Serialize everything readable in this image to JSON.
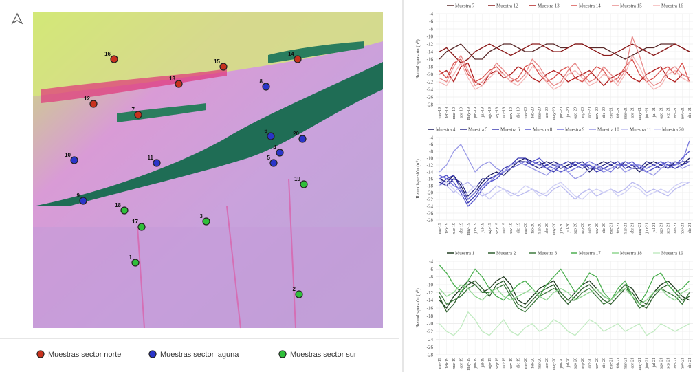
{
  "map": {
    "points": [
      {
        "label": "1",
        "color": "#2fbf3a"
      },
      {
        "label": "2",
        "color": "#2fbf3a"
      },
      {
        "label": "3",
        "color": "#2fbf3a"
      },
      {
        "label": "4",
        "color": "#2a35c9"
      },
      {
        "label": "5",
        "color": "#2a35c9"
      },
      {
        "label": "6",
        "color": "#2a35c9"
      },
      {
        "label": "7",
        "color": "#c8321e"
      },
      {
        "label": "8",
        "color": "#2a35c9"
      },
      {
        "label": "9",
        "color": "#2a35c9"
      },
      {
        "label": "10",
        "color": "#2a35c9"
      },
      {
        "label": "11",
        "color": "#2a35c9"
      },
      {
        "label": "12",
        "color": "#c8321e"
      },
      {
        "label": "13",
        "color": "#c8321e"
      },
      {
        "label": "14",
        "color": "#c8321e"
      },
      {
        "label": "15",
        "color": "#c8321e"
      },
      {
        "label": "16",
        "color": "#c8321e"
      },
      {
        "label": "17",
        "color": "#2fbf3a"
      },
      {
        "label": "18",
        "color": "#2fbf3a"
      },
      {
        "label": "19",
        "color": "#2fbf3a"
      },
      {
        "label": "20",
        "color": "#2a35c9"
      }
    ],
    "legend": [
      {
        "name": "Muestras sector norte",
        "color": "#c8321e"
      },
      {
        "name": "Muestras sector laguna",
        "color": "#2a35c9"
      },
      {
        "name": "Muestras sector sur",
        "color": "#2fbf3a"
      }
    ]
  },
  "chart_data": [
    {
      "type": "line",
      "y_label": "Retrodispersión (σ⁰)",
      "x": [
        "ene-19",
        "feb-19",
        "mar-19",
        "abr-19",
        "may-19",
        "jun-19",
        "jul-19",
        "ago-19",
        "sep-19",
        "oct-19",
        "nov-19",
        "dic-19",
        "ene-20",
        "feb-20",
        "mar-20",
        "abr-20",
        "may-20",
        "jun-20",
        "jul-20",
        "ago-20",
        "sep-20",
        "oct-20",
        "nov-20",
        "dic-20",
        "ene-21",
        "feb-21",
        "mar-21",
        "abr-21",
        "may-21",
        "jun-21",
        "jul-21",
        "ago-21",
        "sep-21",
        "oct-21",
        "nov-21",
        "dic-21"
      ],
      "ylim": [
        -28,
        -4
      ],
      "yticks": [
        -28,
        -26,
        -24,
        -22,
        -20,
        -18,
        -16,
        -14,
        -12,
        -10,
        -8,
        -6,
        -4
      ],
      "grid": true,
      "series": [
        {
          "name": "Muestra 7",
          "color": "#5a2a2a",
          "values": [
            -16,
            -14,
            -13,
            -12,
            -14,
            -16,
            -16,
            -14,
            -13,
            -12,
            -12,
            -13,
            -14,
            -14,
            -13,
            -12,
            -12,
            -13,
            -13,
            -12,
            -12,
            -13,
            -13,
            -13,
            -14,
            -15,
            -16,
            -15,
            -14,
            -13,
            -13,
            -12,
            -12,
            -12,
            -13,
            -14
          ]
        },
        {
          "name": "Muestra 12",
          "color": "#8b1a1a",
          "values": [
            -14,
            -13,
            -15,
            -17,
            -16,
            -14,
            -13,
            -12,
            -13,
            -14,
            -15,
            -14,
            -13,
            -12,
            -12,
            -13,
            -14,
            -14,
            -13,
            -12,
            -12,
            -13,
            -14,
            -15,
            -15,
            -14,
            -13,
            -12,
            -13,
            -14,
            -15,
            -14,
            -13,
            -12,
            -13,
            -14
          ]
        },
        {
          "name": "Muestra 13",
          "color": "#b22222",
          "values": [
            -20,
            -19,
            -22,
            -18,
            -17,
            -22,
            -23,
            -20,
            -19,
            -21,
            -20,
            -18,
            -19,
            -21,
            -22,
            -20,
            -19,
            -20,
            -22,
            -21,
            -20,
            -19,
            -21,
            -23,
            -21,
            -20,
            -19,
            -21,
            -22,
            -20,
            -19,
            -18,
            -21,
            -22,
            -20,
            -21
          ]
        },
        {
          "name": "Muestra 14",
          "color": "#d9534f",
          "values": [
            -19,
            -21,
            -17,
            -16,
            -20,
            -22,
            -21,
            -19,
            -18,
            -20,
            -22,
            -21,
            -18,
            -17,
            -20,
            -22,
            -21,
            -19,
            -18,
            -21,
            -22,
            -20,
            -18,
            -19,
            -22,
            -21,
            -18,
            -16,
            -20,
            -22,
            -21,
            -19,
            -18,
            -20,
            -17,
            -22
          ]
        },
        {
          "name": "Muestra 15",
          "color": "#e88a8a",
          "values": [
            -21,
            -22,
            -18,
            -15,
            -19,
            -23,
            -22,
            -20,
            -17,
            -19,
            -21,
            -22,
            -20,
            -16,
            -18,
            -21,
            -23,
            -22,
            -19,
            -17,
            -20,
            -22,
            -21,
            -18,
            -20,
            -22,
            -19,
            -10,
            -15,
            -21,
            -23,
            -22,
            -19,
            -18,
            -20,
            -21
          ]
        },
        {
          "name": "Muestra 16",
          "color": "#f4b6b6",
          "values": [
            -22,
            -23,
            -20,
            -17,
            -21,
            -24,
            -23,
            -21,
            -19,
            -20,
            -22,
            -23,
            -21,
            -18,
            -19,
            -22,
            -24,
            -23,
            -20,
            -19,
            -21,
            -23,
            -22,
            -20,
            -21,
            -23,
            -20,
            -15,
            -18,
            -22,
            -24,
            -23,
            -20,
            -19,
            -21,
            -22
          ]
        }
      ]
    },
    {
      "type": "line",
      "y_label": "Retrodispersión (σ⁰)",
      "x": [
        "ene-19",
        "feb-19",
        "mar-19",
        "abr-19",
        "may-19",
        "jun-19",
        "jul-19",
        "ago-19",
        "sep-19",
        "oct-19",
        "nov-19",
        "dic-19",
        "ene-20",
        "feb-20",
        "mar-20",
        "abr-20",
        "may-20",
        "jun-20",
        "jul-20",
        "ago-20",
        "sep-20",
        "oct-20",
        "nov-20",
        "dic-20",
        "ene-21",
        "feb-21",
        "mar-21",
        "abr-21",
        "may-21",
        "jun-21",
        "jul-21",
        "ago-21",
        "sep-21",
        "oct-21",
        "nov-21",
        "dic-21"
      ],
      "ylim": [
        -28,
        -4
      ],
      "yticks": [
        -28,
        -26,
        -24,
        -22,
        -20,
        -18,
        -16,
        -14,
        -12,
        -10,
        -8,
        -6,
        -4
      ],
      "grid": true,
      "series": [
        {
          "name": "Muestra 4",
          "color": "#1a1a5e",
          "values": [
            -16,
            -17,
            -15,
            -18,
            -22,
            -20,
            -17,
            -15,
            -14,
            -15,
            -13,
            -11,
            -10,
            -11,
            -12,
            -11,
            -12,
            -13,
            -12,
            -11,
            -12,
            -14,
            -12,
            -11,
            -12,
            -13,
            -11,
            -12,
            -14,
            -12,
            -11,
            -12,
            -13,
            -11,
            -12,
            -10
          ]
        },
        {
          "name": "Muestra 5",
          "color": "#2a2a8a",
          "values": [
            -17,
            -18,
            -16,
            -17,
            -21,
            -19,
            -16,
            -16,
            -15,
            -14,
            -12,
            -11,
            -11,
            -12,
            -13,
            -12,
            -11,
            -12,
            -13,
            -12,
            -11,
            -13,
            -13,
            -12,
            -11,
            -12,
            -12,
            -13,
            -13,
            -11,
            -12,
            -13,
            -12,
            -12,
            -11,
            -11
          ]
        },
        {
          "name": "Muestra 6",
          "color": "#3b3bb0",
          "values": [
            -18,
            -16,
            -15,
            -19,
            -23,
            -21,
            -18,
            -16,
            -15,
            -13,
            -12,
            -10,
            -10,
            -12,
            -11,
            -13,
            -14,
            -12,
            -11,
            -12,
            -13,
            -12,
            -14,
            -13,
            -12,
            -11,
            -13,
            -12,
            -12,
            -13,
            -12,
            -11,
            -12,
            -13,
            -12,
            -11
          ]
        },
        {
          "name": "Muestra 8",
          "color": "#5555cc",
          "values": [
            -16,
            -15,
            -17,
            -20,
            -24,
            -22,
            -19,
            -17,
            -16,
            -14,
            -12,
            -11,
            -12,
            -11,
            -10,
            -12,
            -13,
            -14,
            -13,
            -11,
            -12,
            -12,
            -13,
            -14,
            -13,
            -12,
            -12,
            -11,
            -13,
            -14,
            -13,
            -12,
            -11,
            -12,
            -10,
            -8
          ]
        },
        {
          "name": "Muestra 9",
          "color": "#7777dd",
          "values": [
            -15,
            -16,
            -18,
            -19,
            -22,
            -20,
            -18,
            -17,
            -15,
            -14,
            -13,
            -12,
            -11,
            -11,
            -12,
            -13,
            -12,
            -12,
            -14,
            -13,
            -12,
            -11,
            -12,
            -13,
            -14,
            -12,
            -11,
            -12,
            -12,
            -13,
            -12,
            -11,
            -13,
            -12,
            -11,
            -5
          ]
        },
        {
          "name": "Muestra 10",
          "color": "#9999e6",
          "values": [
            -14,
            -12,
            -8,
            -6,
            -10,
            -14,
            -12,
            -11,
            -13,
            -14,
            -12,
            -11,
            -12,
            -13,
            -14,
            -15,
            -13,
            -12,
            -14,
            -16,
            -15,
            -13,
            -12,
            -14,
            -13,
            -12,
            -14,
            -13,
            -12,
            -14,
            -15,
            -13,
            -12,
            -11,
            -13,
            -12
          ]
        },
        {
          "name": "Muestra 11",
          "color": "#bbbbf0",
          "values": [
            -16,
            -18,
            -20,
            -18,
            -17,
            -19,
            -21,
            -20,
            -18,
            -19,
            -20,
            -21,
            -20,
            -19,
            -20,
            -21,
            -19,
            -18,
            -20,
            -22,
            -20,
            -19,
            -21,
            -20,
            -19,
            -20,
            -19,
            -17,
            -18,
            -20,
            -19,
            -20,
            -21,
            -19,
            -18,
            -17
          ]
        },
        {
          "name": "Muestra 20",
          "color": "#d0d0f5",
          "values": [
            -18,
            -17,
            -19,
            -21,
            -20,
            -18,
            -20,
            -22,
            -20,
            -19,
            -21,
            -20,
            -18,
            -19,
            -21,
            -20,
            -18,
            -17,
            -19,
            -21,
            -22,
            -20,
            -19,
            -20,
            -19,
            -21,
            -20,
            -18,
            -19,
            -21,
            -20,
            -19,
            -20,
            -18,
            -17,
            -17
          ]
        }
      ]
    },
    {
      "type": "line",
      "y_label": "Retrodispersión (σ⁰)",
      "x": [
        "ene-19",
        "feb-19",
        "mar-19",
        "abr-19",
        "may-19",
        "jun-19",
        "jul-19",
        "ago-19",
        "sep-19",
        "oct-19",
        "nov-19",
        "dic-19",
        "ene-20",
        "feb-20",
        "mar-20",
        "abr-20",
        "may-20",
        "jun-20",
        "jul-20",
        "ago-20",
        "sep-20",
        "oct-20",
        "nov-20",
        "dic-20",
        "ene-21",
        "feb-21",
        "mar-21",
        "abr-21",
        "may-21",
        "jun-21",
        "jul-21",
        "ago-21",
        "sep-21",
        "oct-21",
        "nov-21",
        "dic-21"
      ],
      "ylim": [
        -28,
        -4
      ],
      "yticks": [
        -28,
        -26,
        -24,
        -22,
        -20,
        -18,
        -16,
        -14,
        -12,
        -10,
        -8,
        -6,
        -4
      ],
      "grid": true,
      "series": [
        {
          "name": "Muestra 1",
          "color": "#1f3a1f",
          "values": [
            -14,
            -16,
            -13,
            -11,
            -9,
            -10,
            -12,
            -11,
            -9,
            -8,
            -10,
            -14,
            -15,
            -13,
            -11,
            -10,
            -9,
            -12,
            -14,
            -12,
            -10,
            -9,
            -11,
            -13,
            -14,
            -12,
            -10,
            -11,
            -14,
            -15,
            -12,
            -10,
            -9,
            -11,
            -13,
            -14
          ]
        },
        {
          "name": "Muestra 2",
          "color": "#2e5e2e",
          "values": [
            -13,
            -17,
            -15,
            -12,
            -10,
            -9,
            -11,
            -13,
            -10,
            -9,
            -12,
            -15,
            -16,
            -14,
            -12,
            -11,
            -10,
            -13,
            -15,
            -13,
            -11,
            -10,
            -12,
            -14,
            -15,
            -13,
            -11,
            -12,
            -15,
            -16,
            -13,
            -11,
            -10,
            -12,
            -14,
            -13
          ]
        },
        {
          "name": "Muestra 3",
          "color": "#3d7a3d",
          "values": [
            -12,
            -15,
            -14,
            -13,
            -11,
            -10,
            -12,
            -12,
            -11,
            -10,
            -13,
            -16,
            -17,
            -15,
            -13,
            -12,
            -11,
            -12,
            -14,
            -14,
            -12,
            -11,
            -13,
            -15,
            -14,
            -12,
            -10,
            -13,
            -16,
            -15,
            -12,
            -11,
            -12,
            -13,
            -15,
            -12
          ]
        },
        {
          "name": "Muestra 17",
          "color": "#4caf50",
          "values": [
            -5,
            -7,
            -10,
            -12,
            -9,
            -6,
            -8,
            -11,
            -13,
            -14,
            -12,
            -10,
            -9,
            -11,
            -13,
            -10,
            -8,
            -6,
            -9,
            -12,
            -10,
            -7,
            -8,
            -12,
            -14,
            -11,
            -9,
            -13,
            -15,
            -12,
            -8,
            -7,
            -10,
            -12,
            -11,
            -9
          ]
        },
        {
          "name": "Muestra 18",
          "color": "#8fd68f",
          "values": [
            -11,
            -13,
            -12,
            -10,
            -11,
            -13,
            -14,
            -12,
            -11,
            -13,
            -14,
            -13,
            -12,
            -11,
            -13,
            -14,
            -12,
            -11,
            -12,
            -14,
            -13,
            -12,
            -11,
            -13,
            -14,
            -12,
            -11,
            -13,
            -15,
            -14,
            -12,
            -11,
            -13,
            -14,
            -12,
            -11
          ]
        },
        {
          "name": "Muestra 19",
          "color": "#c2ebc2",
          "values": [
            -20,
            -22,
            -23,
            -21,
            -17,
            -19,
            -22,
            -23,
            -21,
            -19,
            -22,
            -23,
            -21,
            -20,
            -22,
            -21,
            -19,
            -20,
            -22,
            -23,
            -21,
            -19,
            -20,
            -22,
            -21,
            -20,
            -22,
            -21,
            -20,
            -23,
            -22,
            -20,
            -21,
            -22,
            -21,
            -20
          ]
        }
      ]
    }
  ]
}
